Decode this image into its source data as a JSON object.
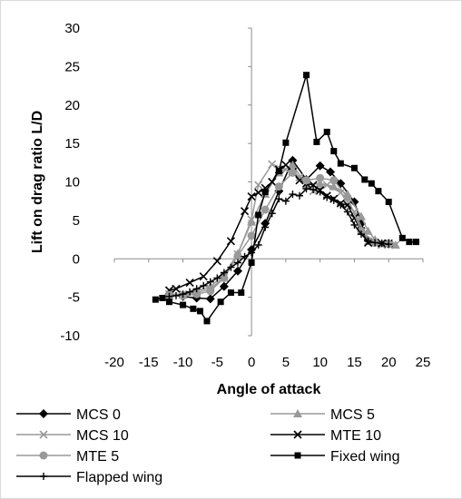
{
  "chart_data": {
    "type": "line",
    "title": "",
    "xlabel": "Angle of attack",
    "ylabel": "Lift on drag ratio L/D",
    "xlim": [
      -20,
      25
    ],
    "ylim": [
      -10,
      30
    ],
    "xticks": [
      -20,
      -15,
      -10,
      -5,
      0,
      5,
      10,
      15,
      20,
      25
    ],
    "yticks": [
      -10,
      -5,
      0,
      5,
      10,
      15,
      20,
      25,
      30
    ],
    "grid": false,
    "legend_position": "bottom",
    "series": [
      {
        "name": "MCS 0",
        "color": "#000000",
        "marker": "diamond",
        "points": [
          [
            -12,
            -4.6
          ],
          [
            -10,
            -4.9
          ],
          [
            -8,
            -5.1
          ],
          [
            -6,
            -5.2
          ],
          [
            -4,
            -3.6
          ],
          [
            -2,
            -1.6
          ],
          [
            0,
            1.2
          ],
          [
            2,
            4.6
          ],
          [
            4,
            8.8
          ],
          [
            6,
            12.8
          ],
          [
            8,
            10.3
          ],
          [
            10,
            12.1
          ],
          [
            11.5,
            11.3
          ],
          [
            13,
            9.8
          ],
          [
            15,
            7.4
          ],
          [
            16,
            4.6
          ],
          [
            17,
            2.4
          ],
          [
            18,
            2.2
          ],
          [
            20,
            2.0
          ]
        ]
      },
      {
        "name": "MCS 5",
        "color": "#999999",
        "marker": "triangle",
        "points": [
          [
            -12,
            -4.8
          ],
          [
            -10,
            -4.7
          ],
          [
            -8,
            -4.2
          ],
          [
            -6,
            -3.6
          ],
          [
            -4,
            -2.1
          ],
          [
            -2,
            0.7
          ],
          [
            0,
            4.8
          ],
          [
            2,
            8.4
          ],
          [
            4,
            11.2
          ],
          [
            6,
            12.2
          ],
          [
            8,
            9.6
          ],
          [
            10,
            9.8
          ],
          [
            12,
            9.4
          ],
          [
            14,
            8.4
          ],
          [
            16,
            5.5
          ],
          [
            17,
            3.6
          ],
          [
            18,
            2.5
          ],
          [
            19,
            2.0
          ],
          [
            21,
            1.8
          ]
        ]
      },
      {
        "name": "MCS 10",
        "color": "#999999",
        "marker": "x",
        "points": [
          [
            -12,
            -4.6
          ],
          [
            -10,
            -4.6
          ],
          [
            -8,
            -4.4
          ],
          [
            -6,
            -3.9
          ],
          [
            -4,
            -2.4
          ],
          [
            -2,
            0.6
          ],
          [
            0,
            5.1
          ],
          [
            1,
            9.6
          ],
          [
            3,
            12.3
          ],
          [
            5,
            11.6
          ],
          [
            7,
            10.6
          ],
          [
            9,
            8.8
          ],
          [
            11,
            9.6
          ],
          [
            13,
            8.6
          ],
          [
            15,
            6.1
          ],
          [
            17,
            2.3
          ],
          [
            19,
            1.8
          ],
          [
            21,
            1.8
          ]
        ]
      },
      {
        "name": "MTE 10",
        "color": "#000000",
        "marker": "x",
        "points": [
          [
            -12,
            -4.1
          ],
          [
            -11,
            -3.9
          ],
          [
            -9,
            -3.1
          ],
          [
            -7,
            -2.3
          ],
          [
            -5,
            -0.3
          ],
          [
            -3,
            2.3
          ],
          [
            -1,
            6.2
          ],
          [
            0,
            8.1
          ],
          [
            1,
            8.6
          ],
          [
            2,
            9.2
          ],
          [
            3,
            10.0
          ],
          [
            4,
            11.6
          ],
          [
            5,
            12.2
          ],
          [
            6,
            11.3
          ],
          [
            7,
            10.2
          ],
          [
            8,
            9.8
          ],
          [
            9,
            9.6
          ],
          [
            10,
            8.9
          ],
          [
            11,
            8.2
          ],
          [
            12,
            7.8
          ],
          [
            13,
            7.2
          ],
          [
            14,
            7.0
          ],
          [
            15,
            5.3
          ],
          [
            16,
            3.6
          ],
          [
            17,
            2.1
          ],
          [
            18,
            2.1
          ],
          [
            19,
            2.0
          ],
          [
            20,
            2.0
          ]
        ]
      },
      {
        "name": "MTE 5",
        "color": "#999999",
        "marker": "circle",
        "points": [
          [
            -12,
            -4.7
          ],
          [
            -10,
            -4.8
          ],
          [
            -8,
            -4.6
          ],
          [
            -6,
            -4.2
          ],
          [
            -4,
            -2.5
          ],
          [
            -2,
            0.4
          ],
          [
            0,
            3.0
          ],
          [
            2,
            6.4
          ],
          [
            4,
            9.4
          ],
          [
            6,
            11.2
          ],
          [
            8,
            10.2
          ],
          [
            10,
            10.5
          ],
          [
            12,
            10.2
          ],
          [
            14,
            8.0
          ],
          [
            16,
            3.6
          ],
          [
            18,
            2.1
          ],
          [
            20,
            1.9
          ]
        ]
      },
      {
        "name": "Fixed wing",
        "color": "#000000",
        "marker": "square",
        "points": [
          [
            -14,
            -5.3
          ],
          [
            -13,
            -5.1
          ],
          [
            -12,
            -5.6
          ],
          [
            -10,
            -6.0
          ],
          [
            -8.5,
            -6.5
          ],
          [
            -7.5,
            -6.8
          ],
          [
            -6.5,
            -8.1
          ],
          [
            -4.5,
            -5.6
          ],
          [
            -3,
            -4.4
          ],
          [
            -1.5,
            -4.4
          ],
          [
            0,
            -0.5
          ],
          [
            1,
            5.7
          ],
          [
            2,
            8.7
          ],
          [
            4,
            11.4
          ],
          [
            5,
            15.1
          ],
          [
            8,
            23.9
          ],
          [
            9.5,
            15.2
          ],
          [
            11,
            16.5
          ],
          [
            12,
            14.0
          ],
          [
            13,
            12.4
          ],
          [
            15,
            11.8
          ],
          [
            16.5,
            10.3
          ],
          [
            17.5,
            9.8
          ],
          [
            18.5,
            8.8
          ],
          [
            20,
            7.4
          ],
          [
            22,
            2.7
          ],
          [
            23,
            2.2
          ],
          [
            24,
            2.2
          ]
        ]
      },
      {
        "name": "Flapped wing",
        "color": "#000000",
        "marker": "plus",
        "points": [
          [
            -12,
            -4.9
          ],
          [
            -11,
            -4.8
          ],
          [
            -10,
            -4.6
          ],
          [
            -9,
            -4.3
          ],
          [
            -8,
            -3.9
          ],
          [
            -7,
            -3.5
          ],
          [
            -6,
            -3.0
          ],
          [
            -5,
            -2.5
          ],
          [
            -4,
            -1.8
          ],
          [
            -3,
            -1.1
          ],
          [
            -2,
            -0.5
          ],
          [
            -1,
            0.3
          ],
          [
            0,
            0.8
          ],
          [
            1,
            1.8
          ],
          [
            2,
            4.1
          ],
          [
            3,
            5.9
          ],
          [
            4,
            7.8
          ],
          [
            5,
            7.5
          ],
          [
            6,
            8.4
          ],
          [
            7,
            8.2
          ],
          [
            8,
            9.1
          ],
          [
            9,
            9.0
          ],
          [
            10,
            8.7
          ],
          [
            11,
            8.0
          ],
          [
            12,
            7.6
          ],
          [
            13,
            7.0
          ],
          [
            14,
            6.1
          ],
          [
            15,
            4.4
          ],
          [
            16,
            3.2
          ],
          [
            17,
            2.3
          ],
          [
            18,
            2.1
          ],
          [
            19,
            2.0
          ],
          [
            20,
            1.9
          ]
        ]
      }
    ]
  }
}
